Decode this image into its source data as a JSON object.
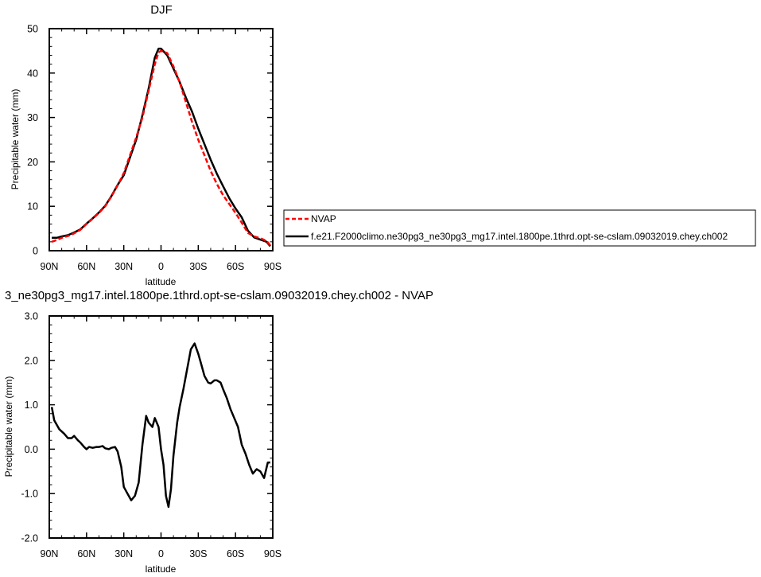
{
  "chart_data": [
    {
      "type": "line",
      "title": "DJF",
      "xlabel": "latitude",
      "ylabel": "Precipitable water (mm)",
      "xlim": [
        90,
        -90
      ],
      "ylim": [
        0,
        50
      ],
      "xticks": [
        {
          "value": 90,
          "label": "90N"
        },
        {
          "value": 60,
          "label": "60N"
        },
        {
          "value": 30,
          "label": "30N"
        },
        {
          "value": 0,
          "label": "0"
        },
        {
          "value": -30,
          "label": "30S"
        },
        {
          "value": -60,
          "label": "60S"
        },
        {
          "value": -90,
          "label": "90S"
        }
      ],
      "yticks": [
        {
          "value": 0,
          "label": "0"
        },
        {
          "value": 10,
          "label": "10"
        },
        {
          "value": 20,
          "label": "20"
        },
        {
          "value": 30,
          "label": "30"
        },
        {
          "value": 40,
          "label": "40"
        },
        {
          "value": 50,
          "label": "50"
        }
      ],
      "grid": false,
      "legend_placement": "right",
      "series": [
        {
          "name": "NVAP",
          "color": "#ff0000",
          "dash": "dashed",
          "x": [
            88,
            84,
            80,
            75,
            70,
            65,
            60,
            55,
            50,
            45,
            40,
            35,
            30,
            25,
            20,
            15,
            10,
            5,
            2,
            0,
            -5,
            -10,
            -15,
            -20,
            -25,
            -30,
            -35,
            -40,
            -45,
            -50,
            -55,
            -60,
            -65,
            -70,
            -75,
            -80,
            -85,
            -88
          ],
          "y": [
            2.0,
            2.4,
            2.9,
            3.3,
            3.9,
            4.7,
            6.0,
            7.2,
            8.5,
            10.0,
            12.2,
            14.7,
            17.5,
            21.5,
            25.5,
            30.0,
            36.0,
            42.0,
            44.7,
            45.0,
            44.5,
            41.5,
            38.0,
            33.5,
            29.0,
            25.0,
            21.5,
            18.0,
            15.0,
            12.5,
            10.5,
            8.5,
            6.3,
            4.0,
            3.2,
            2.8,
            2.2,
            1.2
          ]
        },
        {
          "name": "f.e21.F2000climo.ne30pg3_ne30pg3_mg17.intel.1800pe.1thrd.opt-se-cslam.09032019.chey.ch002",
          "color": "#000000",
          "dash": "solid",
          "x": [
            88,
            84,
            80,
            75,
            70,
            65,
            60,
            55,
            50,
            45,
            40,
            35,
            30,
            25,
            20,
            15,
            10,
            5,
            2,
            0,
            -5,
            -10,
            -15,
            -20,
            -25,
            -30,
            -35,
            -40,
            -45,
            -50,
            -55,
            -60,
            -65,
            -70,
            -75,
            -80,
            -85,
            -88
          ],
          "y": [
            2.9,
            2.9,
            3.2,
            3.5,
            4.1,
            4.8,
            6.1,
            7.3,
            8.6,
            10.1,
            12.3,
            14.8,
            17.0,
            21.0,
            25.0,
            30.5,
            36.5,
            43.5,
            45.5,
            45.5,
            44.0,
            41.0,
            38.0,
            34.5,
            31.3,
            27.5,
            24.0,
            20.5,
            17.3,
            14.5,
            11.8,
            9.5,
            7.5,
            4.5,
            3.0,
            2.5,
            2.0,
            1.0
          ]
        }
      ]
    },
    {
      "type": "line",
      "title": "3_ne30pg3_mg17.intel.1800pe.1thrd.opt-se-cslam.09032019.chey.ch002 - NVAP",
      "xlabel": "latitude",
      "ylabel": "Precipitable water (mm)",
      "xlim": [
        90,
        -90
      ],
      "ylim": [
        -2.0,
        3.0
      ],
      "xticks": [
        {
          "value": 90,
          "label": "90N"
        },
        {
          "value": 60,
          "label": "60N"
        },
        {
          "value": 30,
          "label": "30N"
        },
        {
          "value": 0,
          "label": "0"
        },
        {
          "value": -30,
          "label": "30S"
        },
        {
          "value": -60,
          "label": "60S"
        },
        {
          "value": -90,
          "label": "90S"
        }
      ],
      "yticks": [
        {
          "value": -2.0,
          "label": "-2.0"
        },
        {
          "value": -1.0,
          "label": "-1.0"
        },
        {
          "value": 0.0,
          "label": "0.0"
        },
        {
          "value": 1.0,
          "label": "1.0"
        },
        {
          "value": 2.0,
          "label": "2.0"
        },
        {
          "value": 3.0,
          "label": "3.0"
        }
      ],
      "grid": false,
      "series": [
        {
          "color": "#000000",
          "dash": "solid",
          "x": [
            88,
            86,
            82,
            78,
            75,
            72,
            70,
            67,
            65,
            62,
            60,
            58,
            55,
            52,
            50,
            47,
            45,
            42,
            40,
            37,
            35,
            32,
            30,
            27,
            24,
            21,
            18,
            15,
            12,
            10,
            7,
            5,
            2,
            0,
            -2,
            -4,
            -6,
            -8,
            -10,
            -13,
            -15,
            -18,
            -21,
            -24,
            -27,
            -30,
            -32,
            -35,
            -38,
            -40,
            -43,
            -45,
            -48,
            -50,
            -53,
            -56,
            -59,
            -62,
            -65,
            -68,
            -71,
            -74,
            -77,
            -80,
            -83,
            -86,
            -88
          ],
          "y": [
            0.95,
            0.65,
            0.45,
            0.35,
            0.25,
            0.25,
            0.3,
            0.2,
            0.15,
            0.05,
            0.0,
            0.05,
            0.03,
            0.05,
            0.05,
            0.07,
            0.02,
            0.0,
            0.03,
            0.05,
            -0.05,
            -0.4,
            -0.85,
            -1.0,
            -1.15,
            -1.05,
            -0.75,
            0.1,
            0.75,
            0.6,
            0.5,
            0.7,
            0.5,
            0.0,
            -0.35,
            -1.05,
            -1.3,
            -0.9,
            -0.15,
            0.6,
            0.95,
            1.35,
            1.8,
            2.25,
            2.38,
            2.15,
            1.95,
            1.65,
            1.5,
            1.48,
            1.55,
            1.55,
            1.5,
            1.35,
            1.15,
            0.9,
            0.7,
            0.5,
            0.1,
            -0.1,
            -0.35,
            -0.55,
            -0.45,
            -0.5,
            -0.65,
            -0.3,
            -0.3
          ]
        }
      ]
    }
  ]
}
